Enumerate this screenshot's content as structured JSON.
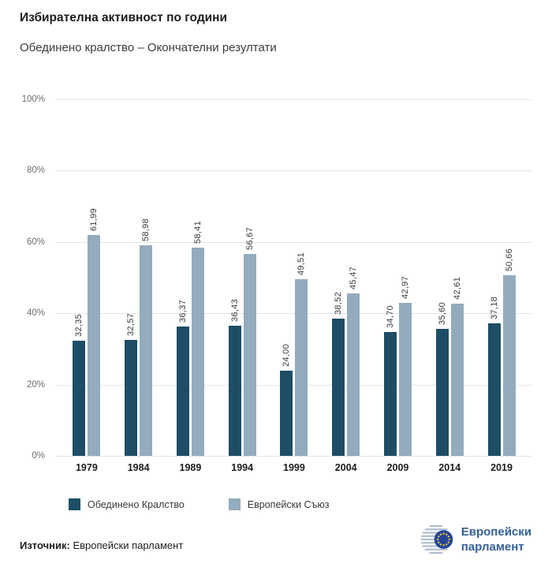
{
  "header": {
    "title": "Избирателна активност по години",
    "subtitle": "Обединено кралство – Окончателни резултати"
  },
  "chart_data": {
    "type": "bar",
    "title": "Избирателна активност по години",
    "subtitle": "Обединено кралство – Окончателни резултати",
    "categories": [
      "1979",
      "1984",
      "1989",
      "1994",
      "1999",
      "2004",
      "2009",
      "2014",
      "2019"
    ],
    "series": [
      {
        "name": "Обединено Кралство",
        "color": "#1d4e66",
        "values": [
          32.35,
          32.57,
          36.37,
          36.43,
          24.0,
          38.52,
          34.7,
          35.6,
          37.18
        ],
        "labels": [
          "32,35",
          "32,57",
          "36,37",
          "36,43",
          "24,00",
          "38,52",
          "34,70",
          "35,60",
          "37,18"
        ]
      },
      {
        "name": "Европейски Съюз",
        "color": "#93abbc",
        "values": [
          61.99,
          58.98,
          58.41,
          56.67,
          49.51,
          45.47,
          42.97,
          42.61,
          50.66
        ],
        "labels": [
          "61,99",
          "58,98",
          "58,41",
          "56,67",
          "49,51",
          "45,47",
          "42,97",
          "42,61",
          "50,66"
        ]
      }
    ],
    "xlabel": "",
    "ylabel": "",
    "ylim": [
      0,
      100
    ],
    "yticks": [
      "100%",
      "80%",
      "60%",
      "40%",
      "20%",
      "0%"
    ],
    "ytick_values": [
      100,
      80,
      60,
      40,
      20,
      0
    ],
    "grid": true,
    "legend_position": "bottom",
    "value_label_format": "decimal-comma-rotated"
  },
  "footer": {
    "source_label": "Източник:",
    "source_value": "Европейски парламент"
  },
  "logo": {
    "line1": "Европейски",
    "line2": "парламент"
  },
  "brand": {
    "ep_text_blue": "#35619b",
    "eu_flag_blue": "#24449c",
    "star_yellow": "#ffd617",
    "emblem_line": "#aebfd3"
  }
}
